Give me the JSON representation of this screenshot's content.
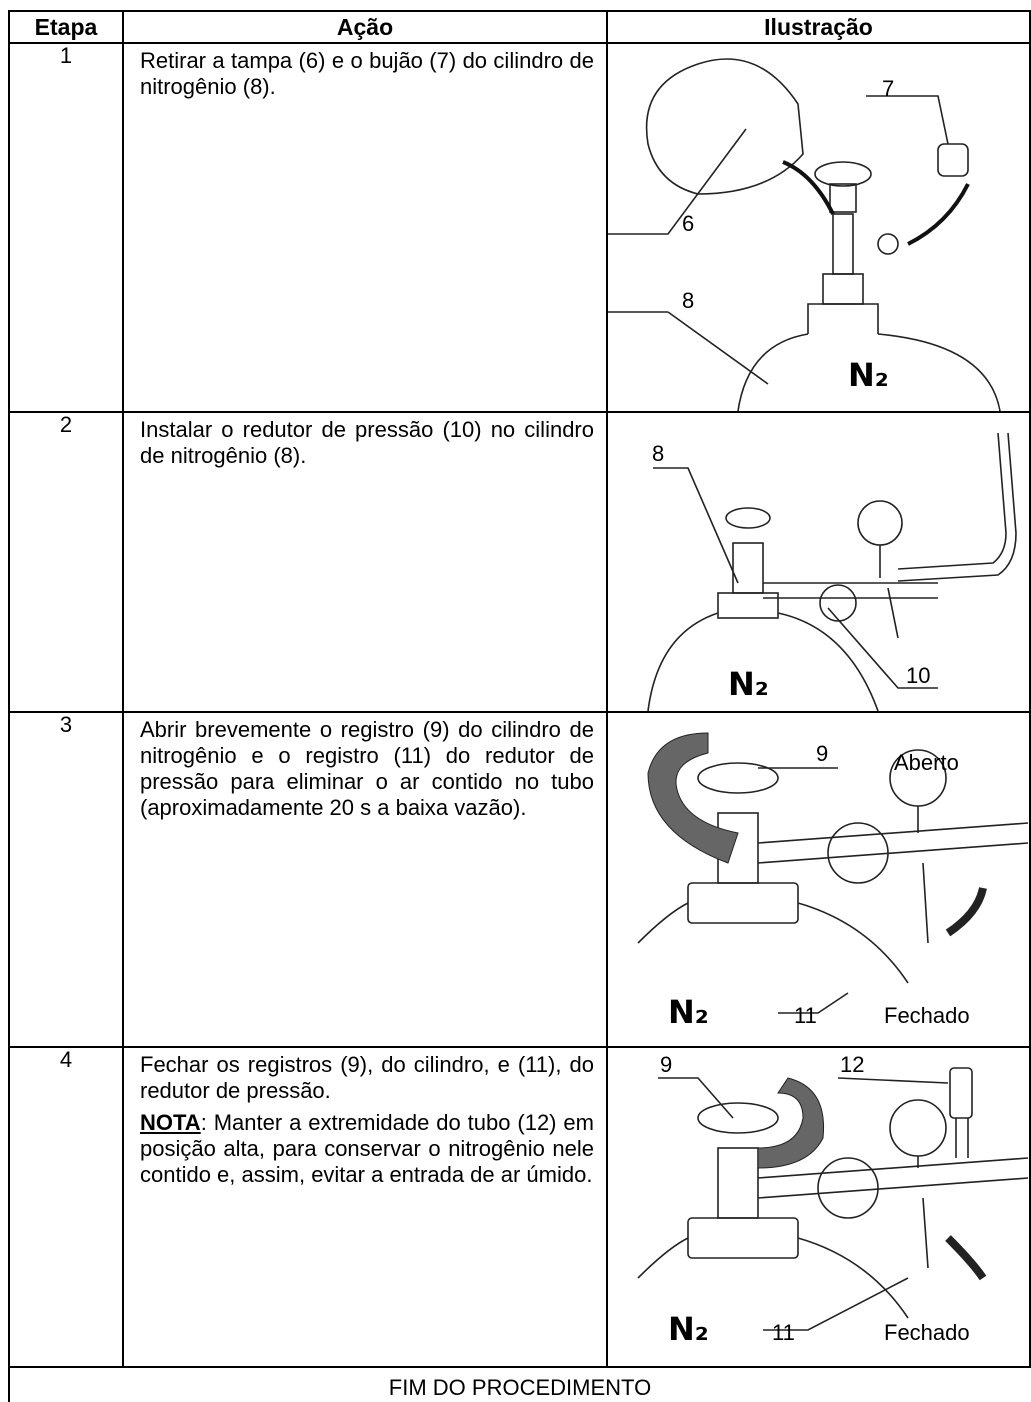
{
  "header": {
    "step": "Etapa",
    "action": "Ação",
    "illustration": "Ilustração"
  },
  "rows": [
    {
      "step": "1",
      "action": "Retirar a tampa (6) e o bujão (7) do cilindro de nitrogênio (8).",
      "labels": [
        "7",
        "6",
        "8",
        "N₂"
      ]
    },
    {
      "step": "2",
      "action": "Instalar o redutor de pressão (10) no cilindro de nitrogênio (8).",
      "labels": [
        "8",
        "N₂",
        "10"
      ]
    },
    {
      "step": "3",
      "action": "Abrir brevemente o registro (9) do cilindro de nitrogênio e o registro (11) do redutor de pressão para eliminar o ar contido no tubo (aproximadamente 20 s a baixa vazão).",
      "labels": [
        "9",
        "Aberto",
        "N₂",
        "11",
        "Fechado"
      ]
    },
    {
      "step": "4",
      "action": "Fechar os registros (9), do cilindro, e (11), do redutor de pressão.",
      "note_label": "NOTA",
      "note": ": Manter a extremidade do tubo (12) em posição alta, para conservar o nitrogênio nele contido e, assim, evitar a entrada de ar úmido.",
      "labels": [
        "9",
        "12",
        "N₂",
        "11",
        "Fechado"
      ]
    }
  ],
  "footer": "FIM DO PROCEDIMENTO"
}
